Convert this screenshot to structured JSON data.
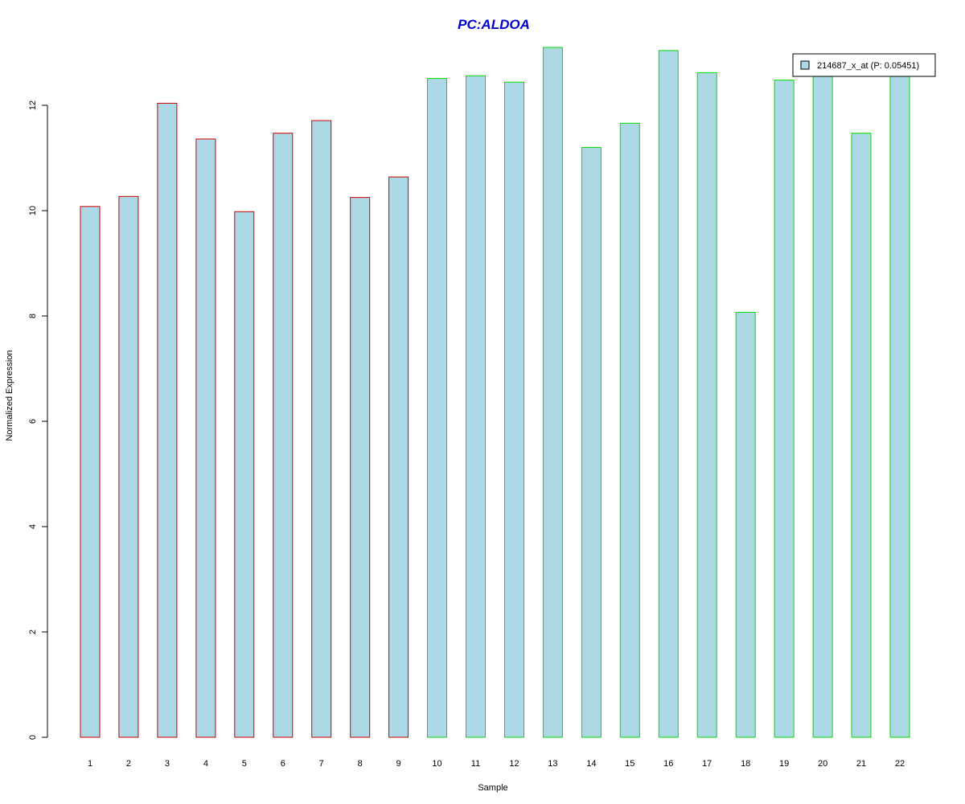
{
  "chart_data": {
    "type": "bar",
    "title": "PC:ALDOA",
    "xlabel": "Sample",
    "ylabel": "Normalized Expression",
    "categories": [
      "1",
      "2",
      "3",
      "4",
      "5",
      "6",
      "7",
      "8",
      "9",
      "10",
      "11",
      "12",
      "13",
      "14",
      "15",
      "16",
      "17",
      "18",
      "19",
      "20",
      "21",
      "22"
    ],
    "values": [
      10.08,
      10.27,
      12.04,
      11.36,
      9.98,
      11.47,
      11.71,
      10.25,
      10.64,
      12.51,
      12.56,
      12.44,
      13.1,
      11.2,
      11.66,
      13.04,
      12.62,
      8.07,
      12.48,
      12.6,
      11.47,
      12.57
    ],
    "bar_borders": [
      "#cc0000",
      "#cc0000",
      "#cc0000",
      "#cc0000",
      "#cc0000",
      "#cc0000",
      "#cc0000",
      "#cc0000",
      "#cc0000",
      "#00dd00",
      "#00dd00",
      "#00dd00",
      "#00dd00",
      "#00dd00",
      "#00dd00",
      "#00dd00",
      "#00dd00",
      "#00dd00",
      "#00dd00",
      "#00dd00",
      "#00dd00",
      "#00dd00"
    ],
    "yticks": [
      "0",
      "2",
      "4",
      "6",
      "8",
      "10",
      "12"
    ],
    "ylim": [
      0,
      13.2
    ],
    "grid": false,
    "legend": {
      "placement": "top-right",
      "label": "214687_x_at (P: 0.05451)"
    }
  },
  "colors": {
    "bar_fill": "#add8e6",
    "title": "#0000cc",
    "group1_border": "#cc0000",
    "group2_border": "#00dd00"
  }
}
